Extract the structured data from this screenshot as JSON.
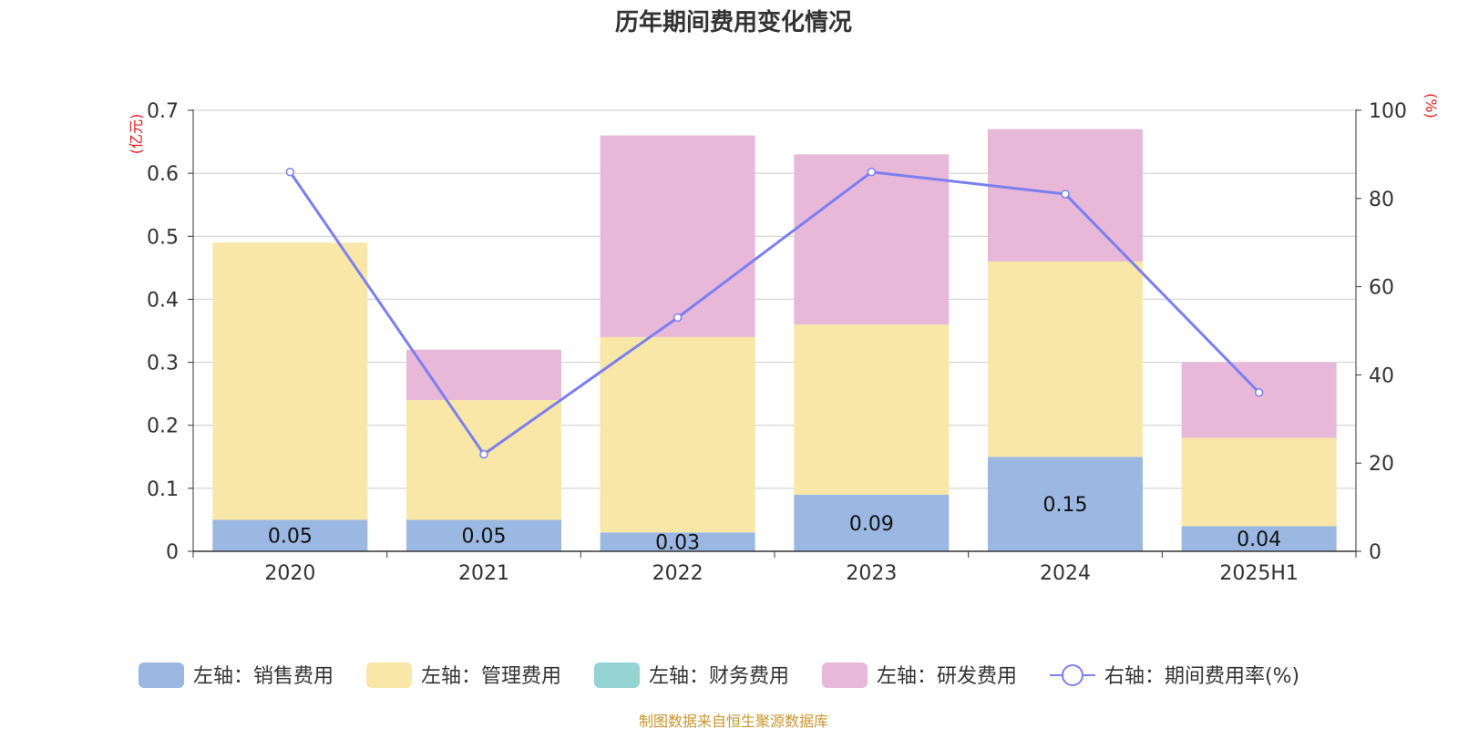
{
  "chart_data": {
    "type": "bar",
    "title": "历年期间费用变化情况",
    "categories": [
      "2020",
      "2021",
      "2022",
      "2023",
      "2024",
      "2025H1"
    ],
    "y_left": {
      "unit": "(亿元)",
      "ylim": [
        0,
        0.7
      ],
      "ticks": [
        0,
        0.1,
        0.2,
        0.3,
        0.4,
        0.5,
        0.6,
        0.7
      ]
    },
    "y_right": {
      "unit": "(%)",
      "ylim": [
        0,
        100
      ],
      "ticks": [
        0,
        20,
        40,
        60,
        80,
        100
      ]
    },
    "series": [
      {
        "name": "左轴：销售费用",
        "kind": "bar",
        "axis": "left",
        "color": "#9bb8e2",
        "values": [
          0.05,
          0.05,
          0.03,
          0.09,
          0.15,
          0.04
        ],
        "labels": [
          "0.05",
          "0.05",
          "0.03",
          "0.09",
          "0.15",
          "0.04"
        ]
      },
      {
        "name": "左轴：管理费用",
        "kind": "bar",
        "axis": "left",
        "color": "#f8e7a6",
        "values": [
          0.44,
          0.19,
          0.31,
          0.27,
          0.31,
          0.14
        ]
      },
      {
        "name": "左轴：财务费用",
        "kind": "bar",
        "axis": "left",
        "color": "#96d3d3",
        "values": [
          0,
          0,
          0,
          0,
          0,
          0
        ]
      },
      {
        "name": "左轴：研发费用",
        "kind": "bar",
        "axis": "left",
        "color": "#e8b8d9",
        "values": [
          0,
          0.08,
          0.32,
          0.27,
          0.21,
          0.12
        ]
      },
      {
        "name": "右轴：期间费用率(%)",
        "kind": "line",
        "axis": "right",
        "color": "#7b7fef",
        "values": [
          86,
          22,
          53,
          86,
          81,
          36
        ]
      }
    ],
    "grid": true,
    "legend": "bottom"
  },
  "footer": {
    "source": "制图数据来自恒生聚源数据库"
  }
}
